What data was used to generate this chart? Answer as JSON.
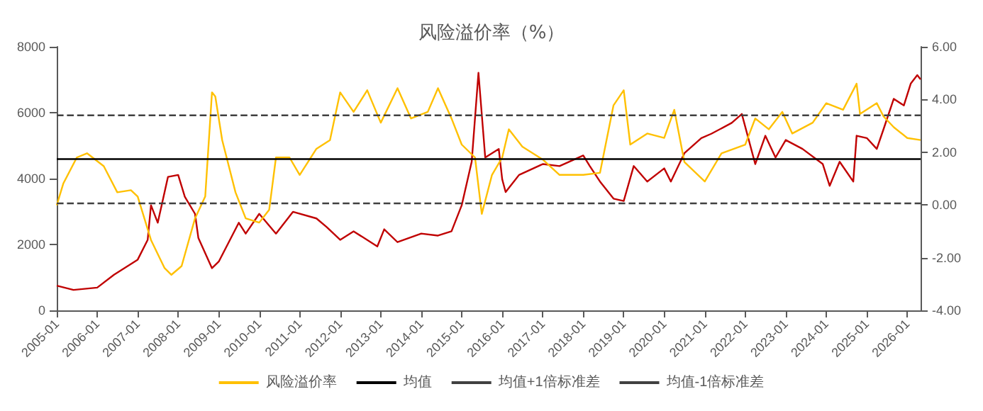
{
  "chart_data": {
    "type": "line",
    "title": "风险溢价率（%）",
    "x": [
      "2005-01",
      "2005-06",
      "2006-01",
      "2006-06",
      "2007-01",
      "2007-04",
      "2007-05",
      "2007-07",
      "2007-10",
      "2008-01",
      "2008-03",
      "2008-06",
      "2008-07",
      "2008-11",
      "2009-01",
      "2009-07",
      "2009-09",
      "2010-01",
      "2010-06",
      "2010-11",
      "2011-06",
      "2011-09",
      "2012-01",
      "2012-05",
      "2012-12",
      "2013-02",
      "2013-06",
      "2014-01",
      "2014-06",
      "2014-10",
      "2015-01",
      "2015-04",
      "2015-06",
      "2015-08",
      "2015-12",
      "2016-01",
      "2016-02",
      "2016-06",
      "2017-01",
      "2017-06",
      "2018-01",
      "2018-03",
      "2018-06",
      "2018-10",
      "2019-01",
      "2019-04",
      "2019-08",
      "2020-01",
      "2020-03",
      "2020-07",
      "2020-12",
      "2021-03",
      "2021-09",
      "2021-12",
      "2022-04",
      "2022-07",
      "2022-10",
      "2023-01",
      "2023-06",
      "2023-12",
      "2024-02",
      "2024-05",
      "2024-09",
      "2024-10",
      "2025-01",
      "2025-04",
      "2025-06",
      "2025-09",
      "2025-12",
      "2026-02",
      "2026-04",
      "2026-05"
    ],
    "series": [
      {
        "color": "#c00000",
        "values": [
          750,
          620,
          690,
          1080,
          1540,
          2140,
          3190,
          2660,
          4050,
          4110,
          3450,
          2930,
          2200,
          1280,
          1480,
          2660,
          2330,
          2930,
          2330,
          2990,
          2790,
          2530,
          2140,
          2400,
          1940,
          2460,
          2070,
          2330,
          2270,
          2400,
          3190,
          4510,
          7210,
          4640,
          4900,
          3980,
          3590,
          4110,
          4440,
          4380,
          4700,
          4380,
          3910,
          3390,
          3320,
          4380,
          3910,
          4310,
          3910,
          4770,
          5230,
          5360,
          5690,
          5960,
          4440,
          5300,
          4640,
          5170,
          4900,
          4440,
          3780,
          4510,
          3910,
          5300,
          5230,
          4900,
          5500,
          6420,
          6220,
          6880,
          7140,
          7010
        ]
      },
      {
        "name": "风险溢价率",
        "color": "#ffc000",
        "axis": "y2",
        "x": [
          "2005-01",
          "2005-03",
          "2005-07",
          "2005-10",
          "2006-03",
          "2006-07",
          "2006-11",
          "2007-01",
          "2007-05",
          "2007-09",
          "2007-11",
          "2008-02",
          "2008-06",
          "2008-09",
          "2008-11",
          "2008-12",
          "2009-02",
          "2009-06",
          "2009-09",
          "2010-01",
          "2010-04",
          "2010-06",
          "2010-10",
          "2011-01",
          "2011-06",
          "2011-10",
          "2012-01",
          "2012-05",
          "2012-09",
          "2013-01",
          "2013-06",
          "2013-10",
          "2014-03",
          "2014-06",
          "2014-10",
          "2015-01",
          "2015-05",
          "2015-07",
          "2015-10",
          "2016-01",
          "2016-03",
          "2016-07",
          "2017-01",
          "2017-06",
          "2018-01",
          "2018-06",
          "2018-10",
          "2019-01",
          "2019-03",
          "2019-08",
          "2020-01",
          "2020-04",
          "2020-07",
          "2021-01",
          "2021-06",
          "2022-01",
          "2022-04",
          "2022-08",
          "2022-12",
          "2023-03",
          "2023-09",
          "2024-01",
          "2024-06",
          "2024-10",
          "2024-11",
          "2025-04",
          "2025-06",
          "2025-09",
          "2026-01",
          "2026-05"
        ],
        "values": [
          -0.01,
          0.81,
          1.8,
          1.96,
          1.47,
          0.48,
          0.56,
          0.32,
          -1.33,
          -2.4,
          -2.65,
          -2.32,
          -0.51,
          0.32,
          4.27,
          4.11,
          2.46,
          0.48,
          -0.51,
          -0.67,
          -0.18,
          1.8,
          1.8,
          1.14,
          2.13,
          2.46,
          4.27,
          3.53,
          4.35,
          3.12,
          4.43,
          3.28,
          3.53,
          4.43,
          3.28,
          2.29,
          1.8,
          -0.34,
          1.14,
          1.8,
          2.87,
          2.21,
          1.72,
          1.14,
          1.14,
          1.22,
          3.78,
          4.35,
          2.29,
          2.71,
          2.54,
          3.61,
          1.63,
          0.89,
          1.96,
          2.29,
          3.28,
          2.87,
          3.53,
          2.71,
          3.12,
          3.86,
          3.61,
          4.6,
          3.45,
          3.86,
          3.36,
          2.95,
          2.54,
          2.46
        ]
      }
    ],
    "ref_lines": [
      {
        "axis": "y2",
        "value": 1.74,
        "label": "均值",
        "color": "#000000",
        "line_style": "solid"
      },
      {
        "axis": "y2",
        "value": 3.4,
        "label": "均值+1倍标准差",
        "color": "#404040",
        "line_style": "dashed"
      },
      {
        "axis": "y2",
        "value": 0.06,
        "label": "均值-1倍标准差",
        "color": "#404040",
        "line_style": "dashed"
      }
    ],
    "xlim": [
      "2005-01",
      "2026-05"
    ],
    "xticks": [
      "2005-01",
      "2006-01",
      "2007-01",
      "2008-01",
      "2009-01",
      "2010-01",
      "2011-01",
      "2012-01",
      "2013-01",
      "2014-01",
      "2015-01",
      "2016-01",
      "2017-01",
      "2018-01",
      "2019-01",
      "2020-01",
      "2021-01",
      "2022-01",
      "2023-01",
      "2024-01",
      "2025-01",
      "2026-01"
    ],
    "ylim": [
      0,
      8000
    ],
    "yticks": [
      0,
      2000,
      4000,
      6000,
      8000
    ],
    "y2lim": [
      -4,
      6
    ],
    "y2ticks": [
      {
        "value": -4,
        "label": "-4.00"
      },
      {
        "value": -2,
        "label": "-2.00"
      },
      {
        "value": 0,
        "label": "0.00"
      },
      {
        "value": 2,
        "label": "2.00"
      },
      {
        "value": 4,
        "label": "4.00"
      },
      {
        "value": 6,
        "label": "6.00"
      }
    ],
    "grid": false,
    "legend": "bottom",
    "marker": "none",
    "line_style": "solid"
  }
}
